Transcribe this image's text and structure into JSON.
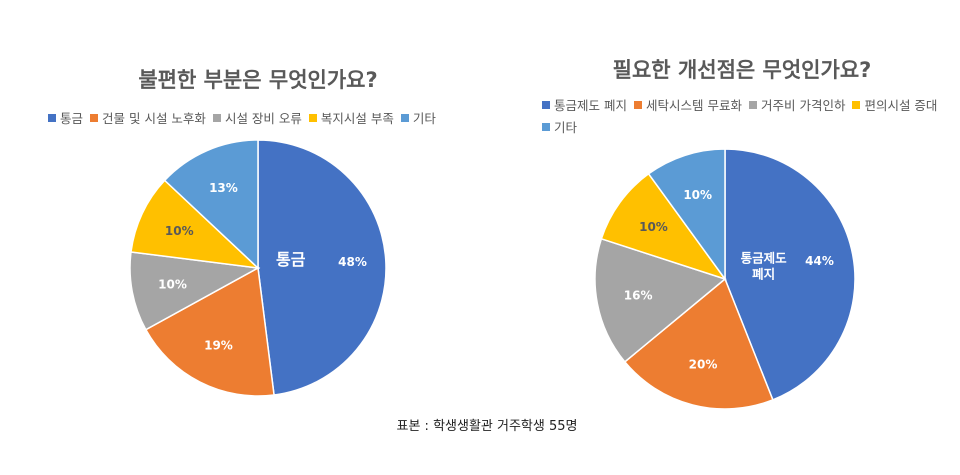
{
  "chart_data": [
    {
      "type": "pie",
      "title": "불편한 부분은 무엇인가요?",
      "categories": [
        "통금",
        "건물 및 시설 노후화",
        "시설 장비 오류",
        "복지시설 부족",
        "기타"
      ],
      "values": [
        48,
        19,
        10,
        10,
        13
      ],
      "value_labels": [
        "48%",
        "19%",
        "10%",
        "10%",
        "13%"
      ],
      "inner_labels": [
        "통금",
        "",
        "",
        "",
        ""
      ],
      "colors": [
        "#4472C4",
        "#ED7D31",
        "#A5A5A5",
        "#FFC000",
        "#5B9BD5"
      ],
      "legend_position": "top"
    },
    {
      "type": "pie",
      "title": "필요한 개선점은 무엇인가요?",
      "categories": [
        "통금제도 폐지",
        "세탁시스템 무료화",
        "거주비 가격인하",
        "편의시설 증대",
        "기타"
      ],
      "values": [
        44,
        20,
        16,
        10,
        10
      ],
      "value_labels": [
        "44%",
        "20%",
        "16%",
        "10%",
        "10%"
      ],
      "inner_labels": [
        "통금제도\n폐지",
        "",
        "",
        "",
        ""
      ],
      "colors": [
        "#4472C4",
        "#ED7D31",
        "#A5A5A5",
        "#FFC000",
        "#5B9BD5"
      ],
      "legend_position": "top"
    }
  ],
  "source_text": "표본 : 학생생활관 거주학생 55명"
}
